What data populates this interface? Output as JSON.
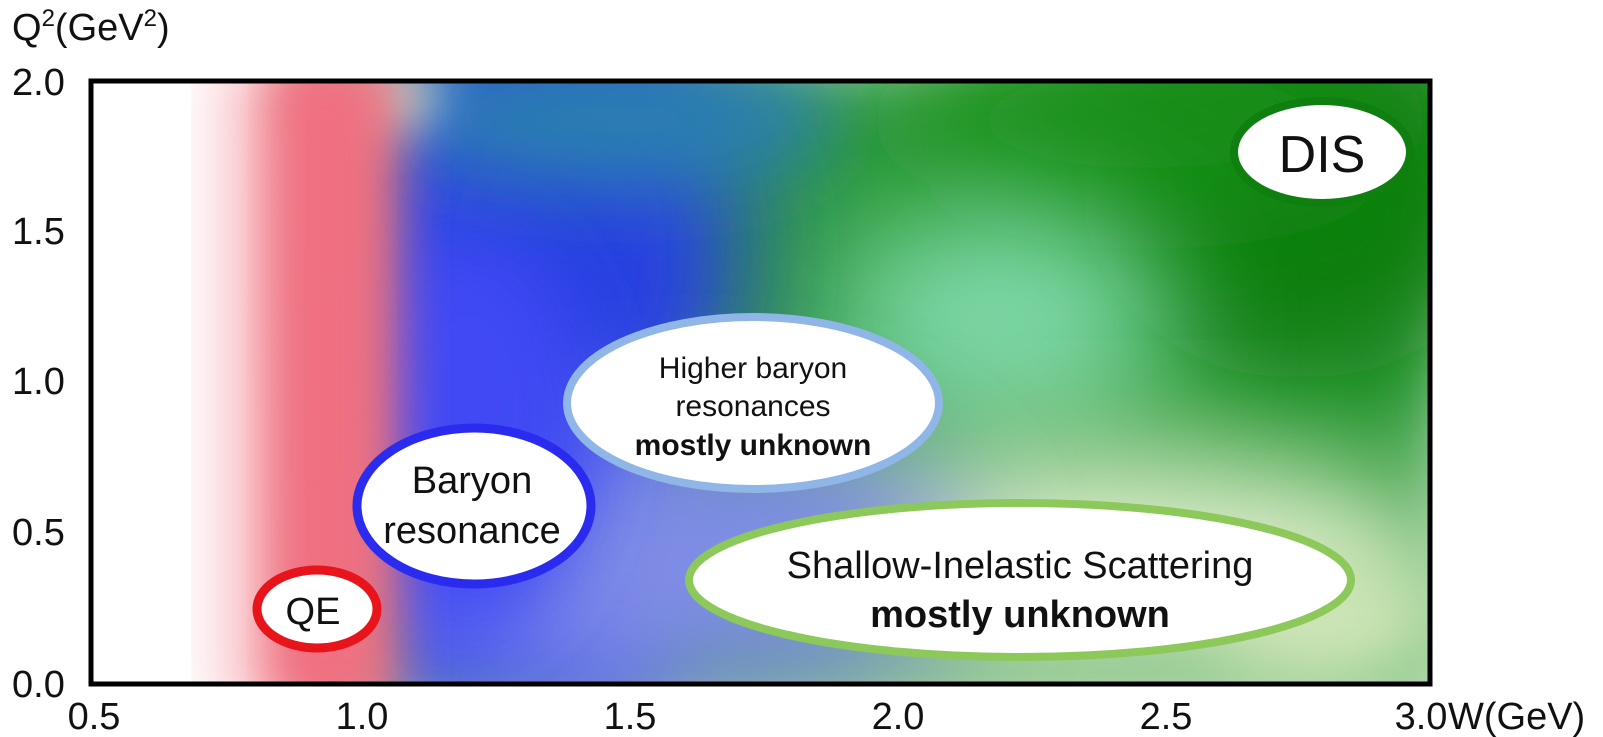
{
  "axes": {
    "x_label": "W(GeV)",
    "y_label_base": "Q",
    "y_label_sup": "2",
    "y_label_unit_open": "(GeV",
    "y_label_unit_sup": "2",
    "y_label_unit_close": ")",
    "x_ticks": [
      "0.5",
      "1.0",
      "1.5",
      "2.0",
      "2.5",
      "3.0"
    ],
    "y_ticks": [
      "0.0",
      "0.5",
      "1.0",
      "1.5",
      "2.0"
    ],
    "x_range": [
      0.5,
      3.0
    ],
    "y_range": [
      0.0,
      2.0
    ]
  },
  "regions": {
    "qe": {
      "label": "QE",
      "color": "#e8141c"
    },
    "baryon": {
      "line1": "Baryon",
      "line2": "resonance",
      "color": "#2b2bf0"
    },
    "higher": {
      "line1": "Higher baryon",
      "line2": "resonances",
      "line3": "mostly unknown",
      "color": "#8fb6e6"
    },
    "sis": {
      "line1": "Shallow-Inelastic Scattering",
      "line2": "mostly unknown",
      "color": "#8cc85a"
    },
    "dis": {
      "label": "DIS",
      "color": "#0f7f10"
    }
  },
  "colors": {
    "qe_band": "#f07080",
    "baryon_band": "#3c3cf0",
    "dis_band": "#108010",
    "frame": "#000000"
  }
}
